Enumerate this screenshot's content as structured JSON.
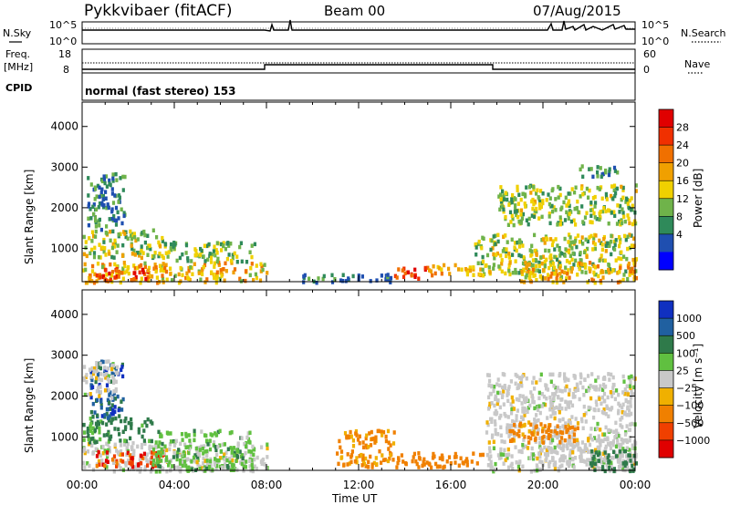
{
  "header": {
    "station": "Pykkvibaer (fitACF)",
    "beam": "Beam 00",
    "date": "07/Aug/2015"
  },
  "top_panels": {
    "nsky_label": "N.Sky",
    "nsearch_label": "N.Search",
    "freq_label_1": "Freq.",
    "freq_label_2": "[MHz]",
    "nave_label": "Nave",
    "cpid_label": "CPID",
    "cpid_text": "normal (fast stereo) 153",
    "nsky_ticks": [
      "10^5",
      "10^0"
    ],
    "nsearch_ticks": [
      "10^5",
      "10^0"
    ],
    "freq_ticks": [
      "18",
      "8"
    ],
    "nave_ticks": [
      "60",
      "0"
    ]
  },
  "colors": {
    "power": [
      "#0000ff",
      "#1f4fb0",
      "#2f8a5a",
      "#6fb34a",
      "#f0d000",
      "#f0a000",
      "#f07000",
      "#f03000",
      "#e00000"
    ],
    "velocity": [
      "#1030c0",
      "#2060a0",
      "#2f7a4a",
      "#60c040",
      "#c8c8c8",
      "#f0b000",
      "#f08000",
      "#f04000",
      "#e00000"
    ]
  },
  "chart_data": [
    {
      "type": "heatmap",
      "name_id": "power-panel",
      "ylabel": "Slant Range [km]",
      "xlabel": "",
      "ylim": [
        180,
        4600
      ],
      "xlim": [
        0,
        24
      ],
      "yticks": [
        "4000",
        "3000",
        "2000",
        "1000"
      ],
      "ytick_values": [
        4000,
        3000,
        2000,
        1000
      ],
      "colorbar": {
        "label": "Power [dB]",
        "ticks": [
          "28",
          "24",
          "20",
          "16",
          "12",
          "8",
          "4"
        ],
        "tick_values": [
          28,
          24,
          20,
          16,
          12,
          8,
          4
        ],
        "range": [
          0,
          32
        ]
      },
      "regions": [
        {
          "t0": 0.0,
          "t1": 8.0,
          "r0": 200,
          "r1": 700,
          "value": 18
        },
        {
          "t0": 0.2,
          "t1": 3.0,
          "r0": 250,
          "r1": 550,
          "value": 26
        },
        {
          "t0": 0.0,
          "t1": 3.5,
          "r0": 800,
          "r1": 1500,
          "value": 14
        },
        {
          "t0": 0.2,
          "t1": 1.8,
          "r0": 1500,
          "r1": 2900,
          "value": 9
        },
        {
          "t0": 3.5,
          "t1": 7.5,
          "r0": 700,
          "r1": 1200,
          "value": 12
        },
        {
          "t0": 9.5,
          "t1": 13.5,
          "r0": 200,
          "r1": 400,
          "value": 8
        },
        {
          "t0": 13.5,
          "t1": 15.0,
          "r0": 300,
          "r1": 600,
          "value": 26
        },
        {
          "t0": 15.0,
          "t1": 17.5,
          "r0": 350,
          "r1": 650,
          "value": 18
        },
        {
          "t0": 17.0,
          "t1": 24.0,
          "r0": 400,
          "r1": 1400,
          "value": 14
        },
        {
          "t0": 18.0,
          "t1": 24.0,
          "r0": 1600,
          "r1": 2600,
          "value": 13
        },
        {
          "t0": 19.0,
          "t1": 24.0,
          "r0": 200,
          "r1": 700,
          "value": 19
        },
        {
          "t0": 21.5,
          "t1": 23.2,
          "r0": 2800,
          "r1": 3100,
          "value": 9
        }
      ]
    },
    {
      "type": "heatmap",
      "name_id": "velocity-panel",
      "ylabel": "Slant Range [km]",
      "xlabel": "Time UT",
      "ylim": [
        180,
        4600
      ],
      "xlim": [
        0,
        24
      ],
      "xticks": [
        "00:00",
        "04:00",
        "08:00",
        "12:00",
        "16:00",
        "20:00",
        "00:00"
      ],
      "xtick_values": [
        0,
        4,
        8,
        12,
        16,
        20,
        24
      ],
      "yticks": [
        "4000",
        "3000",
        "2000",
        "1000"
      ],
      "ytick_values": [
        4000,
        3000,
        2000,
        1000
      ],
      "colorbar": {
        "label": "Velocity [m s⁻¹]",
        "ticks": [
          "1000",
          "500",
          "100",
          "25",
          "−25",
          "−100",
          "−500",
          "−1000"
        ],
        "tick_values": [
          1000,
          500,
          100,
          25,
          -25,
          -100,
          -500,
          -1000
        ],
        "range": [
          -1200,
          1200
        ]
      },
      "regions": [
        {
          "t0": 0.0,
          "t1": 8.0,
          "r0": 200,
          "r1": 900,
          "value": 0
        },
        {
          "t0": 0.5,
          "t1": 3.5,
          "r0": 300,
          "r1": 700,
          "value": -700
        },
        {
          "t0": 0.0,
          "t1": 3.0,
          "r0": 900,
          "r1": 1500,
          "value": 150
        },
        {
          "t0": 0.3,
          "t1": 1.8,
          "r0": 1500,
          "r1": 2900,
          "value": 600
        },
        {
          "t0": 0.0,
          "t1": 1.5,
          "r0": 2000,
          "r1": 2900,
          "value": 0
        },
        {
          "t0": 3.0,
          "t1": 7.5,
          "r0": 200,
          "r1": 1200,
          "value": 60
        },
        {
          "t0": 13.5,
          "t1": 17.5,
          "r0": 300,
          "r1": 650,
          "value": -300
        },
        {
          "t0": 11.0,
          "t1": 13.5,
          "r0": 300,
          "r1": 1200,
          "value": -150
        },
        {
          "t0": 17.5,
          "t1": 24.0,
          "r0": 200,
          "r1": 2600,
          "value": 0
        },
        {
          "t0": 20.0,
          "t1": 24.0,
          "r0": 300,
          "r1": 1000,
          "value": 0
        },
        {
          "t0": 22.0,
          "t1": 24.0,
          "r0": 200,
          "r1": 700,
          "value": 300
        },
        {
          "t0": 18.5,
          "t1": 21.5,
          "r0": 900,
          "r1": 1400,
          "value": -200
        }
      ]
    }
  ]
}
